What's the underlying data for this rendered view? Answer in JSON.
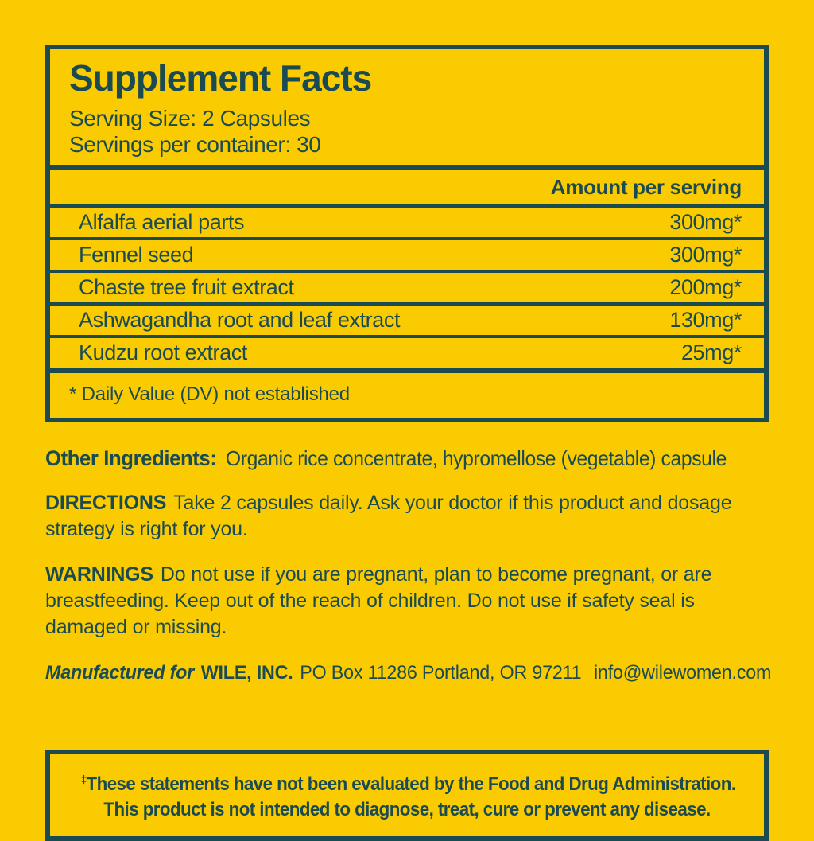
{
  "colors": {
    "background": "#facb00",
    "ink": "#1b4b52"
  },
  "panel": {
    "title": "Supplement Facts",
    "serving_size": "Serving Size: 2 Capsules",
    "servings_per_container": "Servings per container: 30",
    "amount_header": "Amount per serving",
    "rows": [
      {
        "name": "Alfalfa aerial parts",
        "amount": "300mg*"
      },
      {
        "name": "Fennel seed",
        "amount": "300mg*"
      },
      {
        "name": "Chaste tree fruit extract",
        "amount": "200mg*"
      },
      {
        "name": "Ashwagandha root and leaf extract",
        "amount": "130mg*"
      },
      {
        "name": "Kudzu root extract",
        "amount": "25mg*"
      }
    ],
    "footnote": "* Daily Value (DV) not established"
  },
  "sections": {
    "other_ingredients_label": "Other Ingredients:",
    "other_ingredients_text": "Organic rice concentrate, hypromellose (vegetable) capsule",
    "directions_label": "DIRECTIONS",
    "directions_text": "Take 2 capsules daily. Ask your doctor if this product and dosage strategy is right for you.",
    "warnings_label": "WARNINGS",
    "warnings_text": "Do not use if you are pregnant, plan to become pregnant, or are breastfeeding. Keep out of the reach of children. Do not use if safety seal is damaged or missing.",
    "manufactured_label": "Manufactured for",
    "manufacturer_name": "WILE, INC.",
    "manufacturer_address": "PO Box 11286 Portland, OR 97211",
    "manufacturer_email": "info@wilewomen.com"
  },
  "disclaimer": {
    "dagger": "‡",
    "line1": "These statements have not been evaluated by the Food and Drug Administration.",
    "line2": "This product is not intended to diagnose, treat, cure or prevent any disease."
  }
}
